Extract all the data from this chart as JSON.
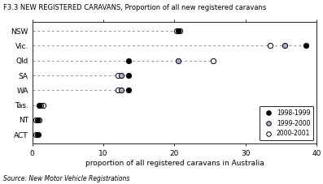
{
  "title": "F3.3 NEW REGISTERED CARAVANS, Proportion of all new registered caravans",
  "xlabel": "proportion of all registered caravans in Australia",
  "source": "Source: New Motor Vehicle Registrations",
  "states": [
    "NSW",
    "Vic.",
    "Qld",
    "SA",
    "WA",
    "Tas.",
    "NT",
    "ACT"
  ],
  "data": {
    "NSW": {
      "fill": 20.5,
      "half": 20.8,
      "open": 20.3
    },
    "Vic.": {
      "fill": 38.5,
      "half": 35.5,
      "open": 33.5
    },
    "Qld": {
      "fill": 13.5,
      "half": 20.5,
      "open": 25.5
    },
    "SA": {
      "fill": 13.5,
      "half": 12.5,
      "open": 12.0
    },
    "WA": {
      "fill": 13.5,
      "half": 12.5,
      "open": 12.0
    },
    "Tas.": {
      "fill": 1.0,
      "half": 1.2,
      "open": 1.5
    },
    "NT": {
      "fill": 0.7,
      "half": 1.0,
      "open": 0.5
    },
    "ACT": {
      "fill": 0.7,
      "half": 0.8,
      "open": 0.5
    }
  },
  "xlim": [
    0,
    40
  ],
  "xticks": [
    0,
    10,
    20,
    30,
    40
  ],
  "legend_labels": [
    "1998-1999",
    "1999-2000",
    "2000-2001"
  ],
  "color_fill": "#000000",
  "color_half": "#aaaadd",
  "color_open": "#ffffff",
  "line_color": "#999966",
  "marker_size": 4.5
}
